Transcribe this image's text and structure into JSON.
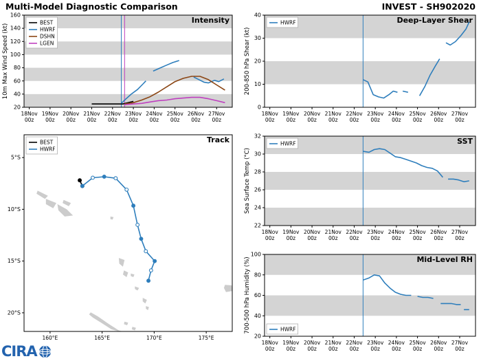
{
  "header": {
    "title": "Multi-Model Diagnostic Comparison",
    "invest_id": "INVEST - SH902020"
  },
  "footer": {
    "logo_text": "CIRA"
  },
  "colors": {
    "best": "#000000",
    "hwrf": "#2e7ebc",
    "dshn": "#8b4513",
    "lgen": "#bf3fbf",
    "band": "#d4d4d4",
    "land": "#cccccc",
    "accent_header": "#000000"
  },
  "chart_data": [
    {
      "id": "intensity",
      "type": "line",
      "title": "Intensity",
      "ylabel": "10m Max Wind Speed (kt)",
      "xlim": [
        17.75,
        27.75
      ],
      "ylim": [
        20,
        160
      ],
      "yticks": [
        20,
        40,
        60,
        80,
        100,
        120,
        140,
        160
      ],
      "xticks": [
        18,
        19,
        20,
        21,
        22,
        23,
        24,
        25,
        26,
        27
      ],
      "xtick_labels": [
        "18Nov",
        "19Nov",
        "20Nov",
        "21Nov",
        "22Nov",
        "23Nov",
        "24Nov",
        "25Nov",
        "26Nov",
        "27Nov"
      ],
      "xtick_sub": "00z",
      "bands": [
        [
          20,
          40
        ],
        [
          60,
          80
        ],
        [
          100,
          120
        ],
        [
          140,
          160
        ]
      ],
      "vlines": [
        {
          "x": 22.42,
          "color": "#2e7ebc"
        },
        {
          "x": 22.58,
          "color": "#bf3fbf"
        }
      ],
      "legend": [
        "BEST",
        "HWRF",
        "DSHN",
        "LGEN"
      ],
      "legend_pos": "tl",
      "series": [
        {
          "name": "BEST",
          "color": "#000000",
          "x": [
            21.0,
            21.5,
            22.0,
            22.5,
            23.0
          ],
          "y": [
            25,
            25,
            25,
            25,
            29
          ]
        },
        {
          "name": "HWRF",
          "color": "#2e7ebc",
          "x": [
            22.42,
            22.65,
            22.9,
            23.2,
            23.45,
            23.6,
            null,
            23.95,
            24.3,
            24.6,
            24.9,
            25.2,
            null,
            25.9,
            26.15,
            26.4,
            26.6,
            26.9,
            27.1,
            27.35
          ],
          "y": [
            26,
            33,
            40,
            47,
            55,
            60,
            null,
            75,
            80,
            84,
            88,
            91,
            null,
            66,
            62,
            58,
            57,
            61,
            59,
            63
          ]
        },
        {
          "name": "DSHN",
          "color": "#8b4513",
          "x": [
            22.58,
            23.0,
            23.4,
            23.8,
            24.2,
            24.6,
            25.0,
            25.4,
            25.8,
            26.2,
            26.6,
            27.0,
            27.4
          ],
          "y": [
            25,
            27,
            31,
            36,
            43,
            51,
            59,
            64,
            67,
            67,
            62,
            54,
            46
          ]
        },
        {
          "name": "LGEN",
          "color": "#bf3fbf",
          "x": [
            22.58,
            23.0,
            23.4,
            23.8,
            24.2,
            24.6,
            25.0,
            25.4,
            25.8,
            26.2,
            26.6,
            27.0,
            27.4
          ],
          "y": [
            24,
            25,
            26,
            28,
            30,
            31,
            33,
            34,
            35,
            35,
            33,
            30,
            27
          ]
        }
      ]
    },
    {
      "id": "track",
      "type": "track",
      "title": "Track",
      "xlim": [
        157.5,
        177.5
      ],
      "ylim": [
        2.8,
        21.8
      ],
      "xticks": [
        160,
        165,
        170,
        175
      ],
      "xtick_labels": [
        "160°E",
        "165°E",
        "170°E",
        "175°E"
      ],
      "yticks": [
        5,
        10,
        15,
        20
      ],
      "ytick_labels": [
        "5°S",
        "10°S",
        "15°S",
        "20°S"
      ],
      "legend": [
        "BEST",
        "HWRF"
      ],
      "legend_pos": "tl",
      "land": [
        [
          [
            158.8,
            8.2
          ],
          [
            159.8,
            8.7
          ],
          [
            159.5,
            9.0
          ],
          [
            158.7,
            8.5
          ]
        ],
        [
          [
            159.6,
            9.0
          ],
          [
            160.6,
            9.4
          ],
          [
            160.3,
            9.9
          ],
          [
            159.6,
            9.5
          ]
        ],
        [
          [
            160.7,
            9.5
          ],
          [
            161.6,
            10.0
          ],
          [
            162.2,
            10.6
          ],
          [
            161.4,
            10.7
          ],
          [
            160.8,
            10.1
          ]
        ],
        [
          [
            161.3,
            9.1
          ],
          [
            162.0,
            9.4
          ],
          [
            161.8,
            9.7
          ],
          [
            161.2,
            9.4
          ]
        ],
        [
          [
            165.8,
            10.7
          ],
          [
            166.1,
            10.75
          ],
          [
            166.0,
            11.0
          ],
          [
            165.8,
            10.95
          ]
        ],
        [
          [
            166.6,
            14.7
          ],
          [
            167.15,
            14.9
          ],
          [
            167.0,
            15.55
          ],
          [
            166.65,
            15.25
          ]
        ],
        [
          [
            167.1,
            15.9
          ],
          [
            167.5,
            16.1
          ],
          [
            167.35,
            16.55
          ],
          [
            167.0,
            16.3
          ]
        ],
        [
          [
            167.75,
            16.2
          ],
          [
            168.1,
            16.3
          ],
          [
            168.0,
            16.55
          ],
          [
            167.75,
            16.45
          ]
        ],
        [
          [
            168.15,
            17.45
          ],
          [
            168.55,
            17.6
          ],
          [
            168.4,
            17.85
          ],
          [
            168.15,
            17.7
          ]
        ],
        [
          [
            168.9,
            18.55
          ],
          [
            169.3,
            18.75
          ],
          [
            169.15,
            19.1
          ],
          [
            168.9,
            18.9
          ]
        ],
        [
          [
            169.2,
            19.35
          ],
          [
            169.5,
            19.45
          ],
          [
            169.4,
            19.75
          ],
          [
            169.2,
            19.6
          ]
        ],
        [
          [
            167.15,
            20.85
          ],
          [
            167.5,
            20.95
          ],
          [
            167.4,
            21.2
          ],
          [
            167.1,
            21.1
          ]
        ],
        [
          [
            167.9,
            21.35
          ],
          [
            168.25,
            21.45
          ],
          [
            168.15,
            21.7
          ],
          [
            167.85,
            21.6
          ]
        ],
        [
          [
            163.9,
            19.95
          ],
          [
            164.6,
            20.35
          ],
          [
            165.6,
            21.05
          ],
          [
            166.6,
            21.7
          ],
          [
            166.95,
            21.8
          ],
          [
            166.6,
            21.8
          ],
          [
            165.9,
            21.6
          ],
          [
            164.9,
            20.95
          ],
          [
            164.1,
            20.45
          ],
          [
            163.75,
            20.15
          ]
        ],
        [
          [
            176.8,
            17.3
          ],
          [
            177.45,
            17.35
          ],
          [
            177.5,
            17.9
          ],
          [
            176.9,
            18.0
          ],
          [
            176.7,
            17.6
          ]
        ]
      ],
      "series": [
        {
          "name": "BEST",
          "color": "#000000",
          "x": [
            162.85,
            163.1
          ],
          "y": [
            7.2,
            7.75
          ],
          "markers": [
            1,
            1
          ]
        },
        {
          "name": "HWRF",
          "color": "#2e7ebc",
          "x": [
            163.1,
            164.1,
            165.2,
            166.3,
            167.35,
            168.0,
            168.4,
            168.75,
            169.2,
            170.05,
            169.7,
            169.45
          ],
          "y": [
            7.75,
            6.95,
            6.85,
            7.0,
            8.1,
            9.65,
            11.5,
            12.85,
            14.05,
            15.0,
            15.9,
            16.9
          ],
          "markers": [
            1,
            0,
            1,
            0,
            0,
            1,
            0,
            1,
            0,
            1,
            0,
            1
          ]
        }
      ]
    },
    {
      "id": "shear",
      "type": "line",
      "title": "Deep-Layer Shear",
      "ylabel": "200-850 hPa Shear (kt)",
      "xlim": [
        17.75,
        27.75
      ],
      "ylim": [
        0,
        40
      ],
      "yticks": [
        0,
        10,
        20,
        30,
        40
      ],
      "xticks": [
        18,
        19,
        20,
        21,
        22,
        23,
        24,
        25,
        26,
        27
      ],
      "xtick_labels": [
        "18Nov",
        "19Nov",
        "20Nov",
        "21Nov",
        "22Nov",
        "23Nov",
        "24Nov",
        "25Nov",
        "26Nov",
        "27Nov"
      ],
      "xtick_sub": "00z",
      "bands": [
        [
          10,
          20
        ],
        [
          30,
          40
        ]
      ],
      "vlines": [
        {
          "x": 22.42,
          "color": "#2e7ebc"
        }
      ],
      "legend": [
        "HWRF"
      ],
      "legend_pos": "tl",
      "series": [
        {
          "name": "HWRF",
          "color": "#2e7ebc",
          "x": [
            22.42,
            22.65,
            22.9,
            23.15,
            23.4,
            23.65,
            23.85,
            24.05,
            null,
            24.3,
            24.55,
            null,
            25.1,
            25.35,
            25.6,
            25.85,
            26.05,
            null,
            26.35,
            26.55,
            26.8,
            27.05,
            27.3,
            27.45
          ],
          "y": [
            12,
            11,
            5.5,
            4.5,
            4,
            5.5,
            7,
            6.5,
            null,
            7,
            6.5,
            null,
            5,
            9,
            14,
            18,
            21,
            null,
            28,
            27,
            28.5,
            31,
            34,
            37
          ]
        }
      ]
    },
    {
      "id": "sst",
      "type": "line",
      "title": "SST",
      "ylabel": "Sea Surface Temp (°C)",
      "xlim": [
        17.75,
        27.75
      ],
      "ylim": [
        22,
        32
      ],
      "yticks": [
        22,
        24,
        26,
        28,
        30,
        32
      ],
      "xticks": [
        18,
        19,
        20,
        21,
        22,
        23,
        24,
        25,
        26,
        27
      ],
      "xtick_labels": [
        "18Nov",
        "19Nov",
        "20Nov",
        "21Nov",
        "22Nov",
        "23Nov",
        "24Nov",
        "25Nov",
        "26Nov",
        "27Nov"
      ],
      "xtick_sub": "00z",
      "bands": [
        [
          22,
          24
        ],
        [
          26,
          28
        ],
        [
          30,
          32
        ]
      ],
      "vlines": [
        {
          "x": 22.42,
          "color": "#2e7ebc"
        }
      ],
      "legend": [
        "HWRF"
      ],
      "legend_pos": "tl",
      "series": [
        {
          "name": "HWRF",
          "color": "#2e7ebc",
          "x": [
            22.42,
            22.7,
            22.95,
            23.2,
            23.45,
            23.7,
            23.95,
            24.2,
            24.45,
            24.7,
            24.95,
            25.2,
            25.45,
            25.7,
            25.95,
            26.2,
            null,
            26.45,
            26.7,
            26.95,
            27.2,
            27.45
          ],
          "y": [
            30.3,
            30.2,
            30.5,
            30.6,
            30.5,
            30.1,
            29.7,
            29.6,
            29.4,
            29.2,
            29.0,
            28.7,
            28.5,
            28.4,
            28.1,
            27.4,
            null,
            27.2,
            27.2,
            27.1,
            26.9,
            27.0
          ]
        }
      ]
    },
    {
      "id": "rh",
      "type": "line",
      "title": "Mid-Level RH",
      "ylabel": "700-500 hPa Humidity (%)",
      "xlim": [
        17.75,
        27.75
      ],
      "ylim": [
        20,
        100
      ],
      "yticks": [
        20,
        40,
        60,
        80,
        100
      ],
      "xticks": [
        18,
        19,
        20,
        21,
        22,
        23,
        24,
        25,
        26,
        27
      ],
      "xtick_labels": [
        "18Nov",
        "19Nov",
        "20Nov",
        "21Nov",
        "22Nov",
        "23Nov",
        "24Nov",
        "25Nov",
        "26Nov",
        "27Nov"
      ],
      "xtick_sub": "00z",
      "bands": [
        [
          40,
          60
        ],
        [
          80,
          100
        ]
      ],
      "vlines": [
        {
          "x": 22.42,
          "color": "#2e7ebc"
        }
      ],
      "legend": [
        "HWRF"
      ],
      "legend_pos": "bl",
      "series": [
        {
          "name": "HWRF",
          "color": "#2e7ebc",
          "x": [
            22.42,
            22.7,
            22.95,
            23.2,
            23.45,
            23.7,
            23.95,
            24.2,
            24.45,
            24.7,
            null,
            25.0,
            25.25,
            25.5,
            25.75,
            null,
            26.1,
            26.35,
            26.6,
            26.85,
            27.05,
            null,
            27.2,
            27.45
          ],
          "y": [
            75,
            77,
            80,
            79,
            72,
            67,
            63,
            61,
            60,
            60,
            null,
            59,
            58,
            58,
            57,
            null,
            52,
            52,
            52,
            51,
            51,
            null,
            46,
            46
          ]
        }
      ]
    }
  ]
}
